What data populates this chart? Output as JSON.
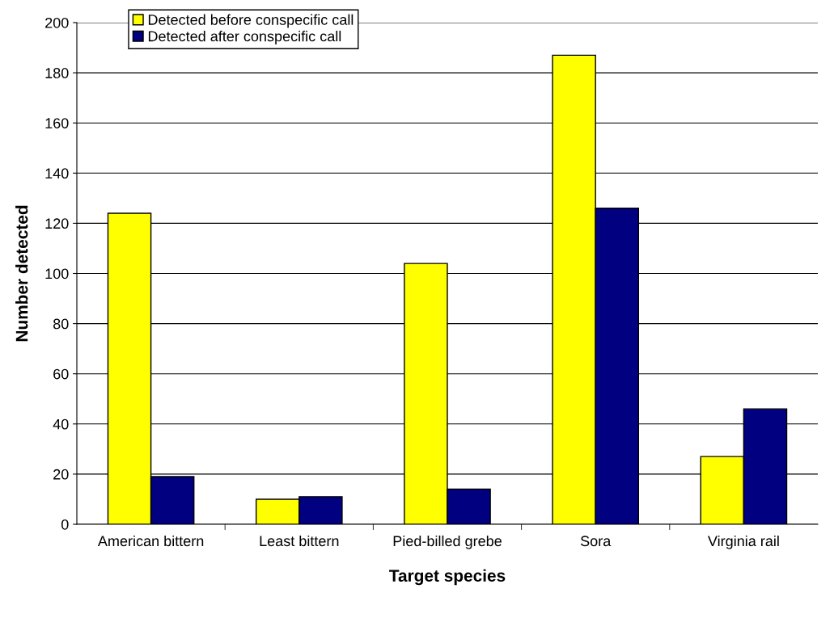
{
  "chart_data": {
    "type": "bar",
    "xlabel": "Target species",
    "ylabel": "Number detected",
    "categories": [
      "American bittern",
      "Least bittern",
      "Pied-billed grebe",
      "Sora",
      "Virginia rail"
    ],
    "series": [
      {
        "name": "Detected before conspecific call",
        "color": "#ffff00",
        "values": [
          124,
          10,
          104,
          187,
          27
        ]
      },
      {
        "name": "Detected after conspecific call",
        "color": "#000080",
        "values": [
          19,
          11,
          14,
          126,
          46
        ]
      }
    ],
    "ylim": [
      0,
      200
    ],
    "yticks": [
      0,
      20,
      40,
      60,
      80,
      100,
      120,
      140,
      160,
      180,
      200
    ],
    "grid": "y",
    "legend": "top left"
  }
}
